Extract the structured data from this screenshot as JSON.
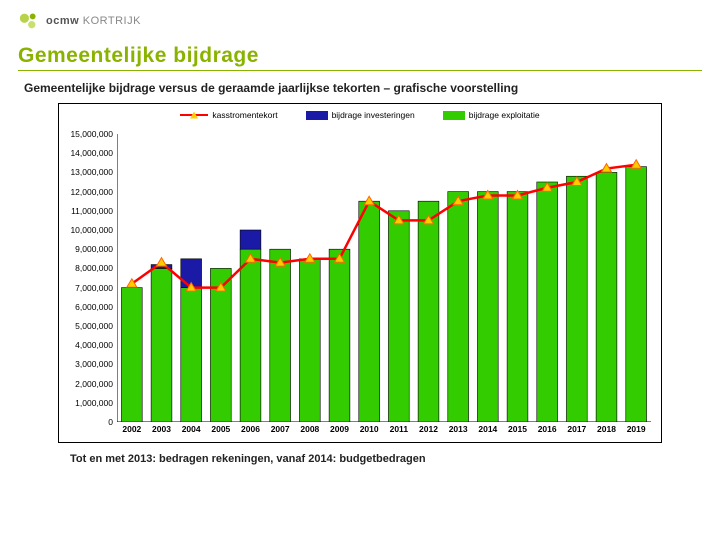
{
  "logo": {
    "label": "ocmw",
    "label2": "KORTRIJK"
  },
  "title": {
    "text": "Gemeentelijke bijdrage",
    "color": "#8ab300"
  },
  "rule_color": "#8ab300",
  "subtitle": "Gemeentelijke bijdrage versus de geraamde jaarlijkse tekorten – grafische voorstelling",
  "footnote": "Tot en met 2013: bedragen rekeningen, vanaf 2014: budgetbedragen",
  "legend": {
    "items": [
      {
        "label": "kasstromentekort",
        "type": "line",
        "color": "#ff0000",
        "marker_border": "#ffcc00"
      },
      {
        "label": "bijdrage investeringen",
        "type": "box",
        "color": "#1a1aa6"
      },
      {
        "label": "bijdrage exploitatie",
        "type": "box",
        "color": "#33cc00"
      }
    ]
  },
  "chart": {
    "type": "stacked-bar-with-line",
    "background": "#ffffff",
    "border_color": "#000000",
    "ylim": [
      0,
      15000000
    ],
    "ytick_step": 1000000,
    "ylabel_format": "comma",
    "categories": [
      "2002",
      "2003",
      "2004",
      "2005",
      "2006",
      "2007",
      "2008",
      "2009",
      "2010",
      "2011",
      "2012",
      "2013",
      "2014",
      "2015",
      "2016",
      "2017",
      "2018",
      "2019"
    ],
    "series_bar": [
      {
        "name": "bijdrage exploitatie",
        "color": "#33cc00",
        "values": [
          7000000,
          8000000,
          7000000,
          8000000,
          9000000,
          9000000,
          8500000,
          9000000,
          11500000,
          11000000,
          11500000,
          12000000,
          12000000,
          12000000,
          12500000,
          12800000,
          13000000,
          13300000
        ]
      },
      {
        "name": "bijdrage investeringen",
        "color": "#1a1aa6",
        "values": [
          0,
          200000,
          1500000,
          0,
          1000000,
          0,
          0,
          0,
          0,
          0,
          0,
          0,
          0,
          0,
          0,
          0,
          0,
          0
        ]
      }
    ],
    "series_line": {
      "name": "kasstromentekort",
      "color": "#ff0000",
      "marker_fill": "#ffcc00",
      "marker_border": "#ff6600",
      "values": [
        7200000,
        8300000,
        7000000,
        7000000,
        8500000,
        8300000,
        8500000,
        8500000,
        11500000,
        10500000,
        10500000,
        11500000,
        11800000,
        11800000,
        12200000,
        12500000,
        13200000,
        13400000
      ]
    },
    "bar_width": 0.7,
    "line_width": 2.5,
    "marker_size": 5,
    "axis_color": "#000000",
    "tick_len": 3,
    "label_fontsize": 8.5,
    "label_fontweight_x": "700"
  }
}
